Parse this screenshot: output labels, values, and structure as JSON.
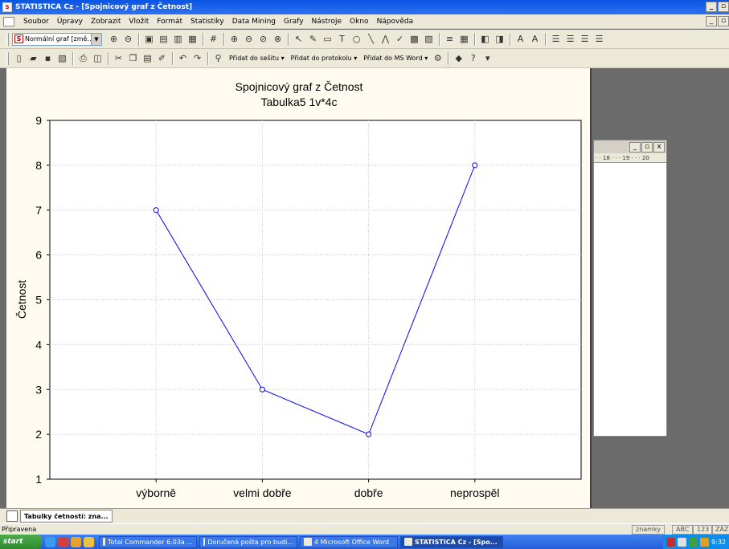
{
  "window": {
    "title": "STATISTICA Cz - [Spojnicový graf z Četnost]",
    "minimize": "_",
    "restore": "▫",
    "close": "x"
  },
  "menu": [
    "Soubor",
    "Úpravy",
    "Zobrazit",
    "Vložit",
    "Formát",
    "Statistiky",
    "Data Mining",
    "Grafy",
    "Nástroje",
    "Okno",
    "Nápověda"
  ],
  "toolbar1": {
    "graph_type_value": "Normální graf [změ..."
  },
  "toolbar2": {
    "add_workbook": "Přidat do sešitu",
    "add_report": "Přidat do protokolu",
    "add_word": "Přidat do MS Word"
  },
  "chart_data": {
    "type": "line",
    "title": "Spojnicový graf z Četnost",
    "subtitle": "Tabulka5 1v*4c",
    "ylabel": "Četnost",
    "xlabel": "",
    "categories": [
      "výborně",
      "velmi dobře",
      "dobře",
      "neprospěl"
    ],
    "values": [
      7,
      3,
      2,
      8
    ],
    "ylim": [
      1,
      9
    ],
    "yticks": [
      "1",
      "2",
      "3",
      "4",
      "5",
      "6",
      "7",
      "8",
      "9"
    ],
    "grid": true,
    "line_color": "#0000ff",
    "background": "#fffbf0"
  },
  "bg_window": {
    "ruler": "· · 18 · · · 19 · · · 20"
  },
  "mdi": {
    "tab_label": "Tabulky četností: zna..."
  },
  "status": {
    "text": "Připravena",
    "cell1": "znamky",
    "cell2": "ABC",
    "cell3": "123",
    "cell4": "ZÁZ"
  },
  "taskbar": {
    "start": "start",
    "tasks": [
      {
        "label": "Total Commander 6.03a ...",
        "active": false
      },
      {
        "label": "Doručená pošta pro budi...",
        "active": false
      },
      {
        "label": "4 Microsoft Office Word",
        "active": false
      },
      {
        "label": "STATISTICA Cz - [Spo...",
        "active": true
      }
    ],
    "clock": "9:32"
  }
}
